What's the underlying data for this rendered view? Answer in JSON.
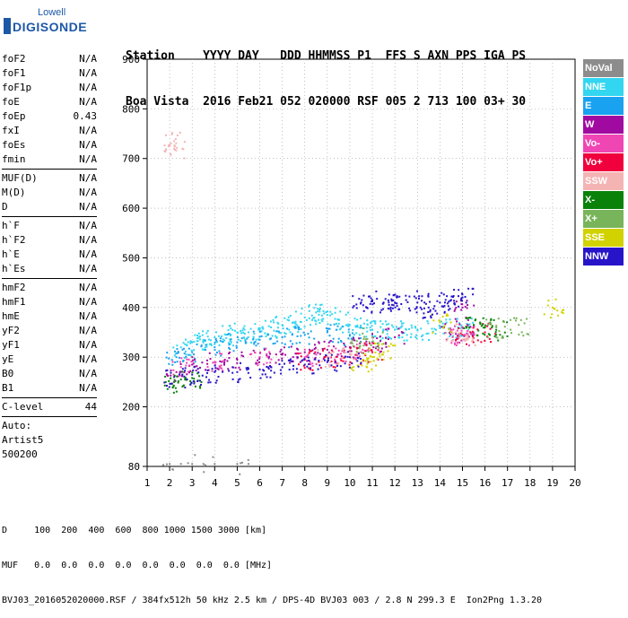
{
  "logo": {
    "line1": "Lowell",
    "line2": "DIGISONDE"
  },
  "header": {
    "row1": "Station    YYYY DAY   DDD HHMMSS P1  FFS S AXN PPS IGA PS",
    "row2": "Boa Vista  2016 Feb21 052 020000 RSF 005 2 713 100 03+ 30"
  },
  "params": {
    "group1": [
      {
        "name": "foF2",
        "value": "N/A"
      },
      {
        "name": "foF1",
        "value": "N/A"
      },
      {
        "name": "foF1p",
        "value": "N/A"
      },
      {
        "name": "foE",
        "value": "N/A"
      },
      {
        "name": "foEp",
        "value": "0.43"
      },
      {
        "name": "fxI",
        "value": "N/A"
      },
      {
        "name": "foEs",
        "value": "N/A"
      },
      {
        "name": "fmin",
        "value": "N/A"
      }
    ],
    "group2": [
      {
        "name": "MUF(D)",
        "value": "N/A"
      },
      {
        "name": "M(D)",
        "value": "N/A"
      },
      {
        "name": "D",
        "value": "N/A"
      }
    ],
    "group3": [
      {
        "name": "h`F",
        "value": "N/A"
      },
      {
        "name": "h`F2",
        "value": "N/A"
      },
      {
        "name": "h`E",
        "value": "N/A"
      },
      {
        "name": "h`Es",
        "value": "N/A"
      }
    ],
    "group4": [
      {
        "name": "hmF2",
        "value": "N/A"
      },
      {
        "name": "hmF1",
        "value": "N/A"
      },
      {
        "name": "hmE",
        "value": "N/A"
      },
      {
        "name": "yF2",
        "value": "N/A"
      },
      {
        "name": "yF1",
        "value": "N/A"
      },
      {
        "name": "yE",
        "value": "N/A"
      },
      {
        "name": "B0",
        "value": "N/A"
      },
      {
        "name": "B1",
        "value": "N/A"
      }
    ],
    "group5": [
      {
        "name": "C-level",
        "value": "44"
      }
    ],
    "auto": [
      "Auto:",
      "Artist5",
      "500200"
    ]
  },
  "legend": [
    {
      "label": "NoVal",
      "color": "#8c8c8c"
    },
    {
      "label": "NNE",
      "color": "#33d6f0"
    },
    {
      "label": "E",
      "color": "#19a2f0"
    },
    {
      "label": "W",
      "color": "#a00aa0"
    },
    {
      "label": "Vo-",
      "color": "#f046b4"
    },
    {
      "label": "Vo+",
      "color": "#f0003c"
    },
    {
      "label": "SSW",
      "color": "#f5b4b4"
    },
    {
      "label": "X-",
      "color": "#0a820a"
    },
    {
      "label": "X+",
      "color": "#78b45a"
    },
    {
      "label": "SSE",
      "color": "#d2d200"
    },
    {
      "label": "NNW",
      "color": "#2814c8"
    }
  ],
  "footer": {
    "line1": "D     100  200  400  600  800 1000 1500 3000 [km]",
    "line2": "MUF   0.0  0.0  0.0  0.0  0.0  0.0  0.0  0.0 [MHz]",
    "line3": "BVJ03_2016052020000.RSF / 384fx512h 50 kHz 2.5 km / DPS-4D BVJ03 003 / 2.8 N 299.3 E  Ion2Png 1.3.20"
  },
  "chart_data": {
    "type": "scatter",
    "xlim": [
      1,
      20
    ],
    "ylim": [
      80,
      900
    ],
    "xticks": [
      "1",
      "2",
      "3",
      "4",
      "5",
      "6",
      "7",
      "8",
      "9",
      "10",
      "11",
      "12",
      "13",
      "14",
      "15",
      "16",
      "17",
      "18",
      "19",
      "20"
    ],
    "yticks": [
      "80",
      "200",
      "300",
      "400",
      "500",
      "600",
      "700",
      "800",
      "900"
    ],
    "xlabel": "",
    "ylabel": "",
    "grid": "dotted",
    "series": [
      {
        "name": "NNE",
        "color": "#33d6f0",
        "points": [
          [
            2.5,
            320
          ],
          [
            3.0,
            330
          ],
          [
            3.5,
            335
          ],
          [
            4.0,
            340
          ],
          [
            4.5,
            345
          ],
          [
            5.0,
            350
          ],
          [
            5.5,
            350
          ],
          [
            6.0,
            355
          ],
          [
            6.5,
            360
          ],
          [
            7.0,
            365
          ],
          [
            7.5,
            370
          ],
          [
            8.0,
            380
          ],
          [
            8.5,
            390
          ],
          [
            9.0,
            385
          ],
          [
            9.5,
            375
          ],
          [
            10.0,
            365
          ],
          [
            10.5,
            360
          ],
          [
            11.0,
            355
          ],
          [
            11.5,
            355
          ],
          [
            12.0,
            355
          ],
          [
            12.5,
            355
          ],
          [
            13.0,
            355
          ],
          [
            14.0,
            360
          ],
          [
            14.5,
            355
          ],
          [
            15.0,
            360
          ]
        ]
      },
      {
        "name": "E",
        "color": "#19a2f0",
        "points": [
          [
            2.3,
            300
          ],
          [
            3.0,
            310
          ],
          [
            4.0,
            320
          ],
          [
            5.0,
            330
          ],
          [
            6.0,
            335
          ],
          [
            7.0,
            340
          ],
          [
            8.0,
            345
          ],
          [
            9.0,
            350
          ],
          [
            10.0,
            345
          ]
        ]
      },
      {
        "name": "W",
        "color": "#a00aa0",
        "points": [
          [
            2.3,
            270
          ],
          [
            3.0,
            285
          ],
          [
            4.0,
            290
          ],
          [
            5.0,
            295
          ],
          [
            6.0,
            300
          ],
          [
            7.0,
            305
          ],
          [
            8.0,
            310
          ],
          [
            9.0,
            315
          ],
          [
            10.0,
            320
          ],
          [
            11.0,
            330
          ],
          [
            12.0,
            340
          ],
          [
            14.5,
            350
          ],
          [
            15.0,
            360
          ],
          [
            15.0,
            400
          ]
        ]
      },
      {
        "name": "Vo-",
        "color": "#f046b4",
        "points": [
          [
            2.5,
            280
          ],
          [
            4.0,
            290
          ],
          [
            6.0,
            300
          ],
          [
            8.0,
            300
          ],
          [
            9.5,
            305
          ],
          [
            10.5,
            310
          ],
          [
            14.8,
            340
          ],
          [
            15.1,
            345
          ]
        ]
      },
      {
        "name": "Vo+",
        "color": "#f0003c",
        "points": [
          [
            8.0,
            295
          ],
          [
            9.0,
            300
          ],
          [
            10.0,
            305
          ],
          [
            11.0,
            310
          ],
          [
            15.0,
            345
          ],
          [
            16.0,
            350
          ]
        ]
      },
      {
        "name": "SSW",
        "color": "#f5b4b4",
        "points": [
          [
            2.2,
            735
          ],
          [
            2.2,
            720
          ],
          [
            9.0,
            300
          ],
          [
            10.0,
            310
          ],
          [
            14.7,
            350
          ],
          [
            15.2,
            335
          ]
        ]
      },
      {
        "name": "X-",
        "color": "#0a820a",
        "points": [
          [
            2.2,
            250
          ],
          [
            2.5,
            255
          ],
          [
            3.0,
            258
          ],
          [
            15.5,
            365
          ],
          [
            16.0,
            360
          ],
          [
            16.5,
            355
          ]
        ]
      },
      {
        "name": "X+",
        "color": "#78b45a",
        "points": [
          [
            10.5,
            330
          ],
          [
            11.0,
            340
          ],
          [
            16.5,
            360
          ],
          [
            17.5,
            365
          ]
        ]
      },
      {
        "name": "SSE",
        "color": "#d2d200",
        "points": [
          [
            10.5,
            290
          ],
          [
            11.0,
            300
          ],
          [
            11.5,
            310
          ],
          [
            14.0,
            370
          ],
          [
            19.0,
            400
          ]
        ]
      },
      {
        "name": "NNW",
        "color": "#2814c8",
        "points": [
          [
            2.2,
            260
          ],
          [
            3.0,
            265
          ],
          [
            4.0,
            270
          ],
          [
            5.0,
            270
          ],
          [
            6.0,
            275
          ],
          [
            7.0,
            280
          ],
          [
            8.0,
            285
          ],
          [
            9.0,
            290
          ],
          [
            10.0,
            300
          ],
          [
            10.5,
            410
          ],
          [
            11.0,
            415
          ],
          [
            11.5,
            410
          ],
          [
            12.0,
            410
          ],
          [
            12.5,
            415
          ],
          [
            13.0,
            410
          ],
          [
            13.5,
            400
          ],
          [
            14.0,
            410
          ],
          [
            14.5,
            415
          ],
          [
            15.0,
            420
          ]
        ]
      },
      {
        "name": "NoVal",
        "color": "#8c8c8c",
        "points": [
          [
            2.0,
            85
          ],
          [
            2.5,
            85
          ],
          [
            3.0,
            85
          ],
          [
            3.5,
            85
          ],
          [
            4.0,
            85
          ],
          [
            5.0,
            85
          ],
          [
            5.5,
            85
          ]
        ]
      }
    ]
  }
}
